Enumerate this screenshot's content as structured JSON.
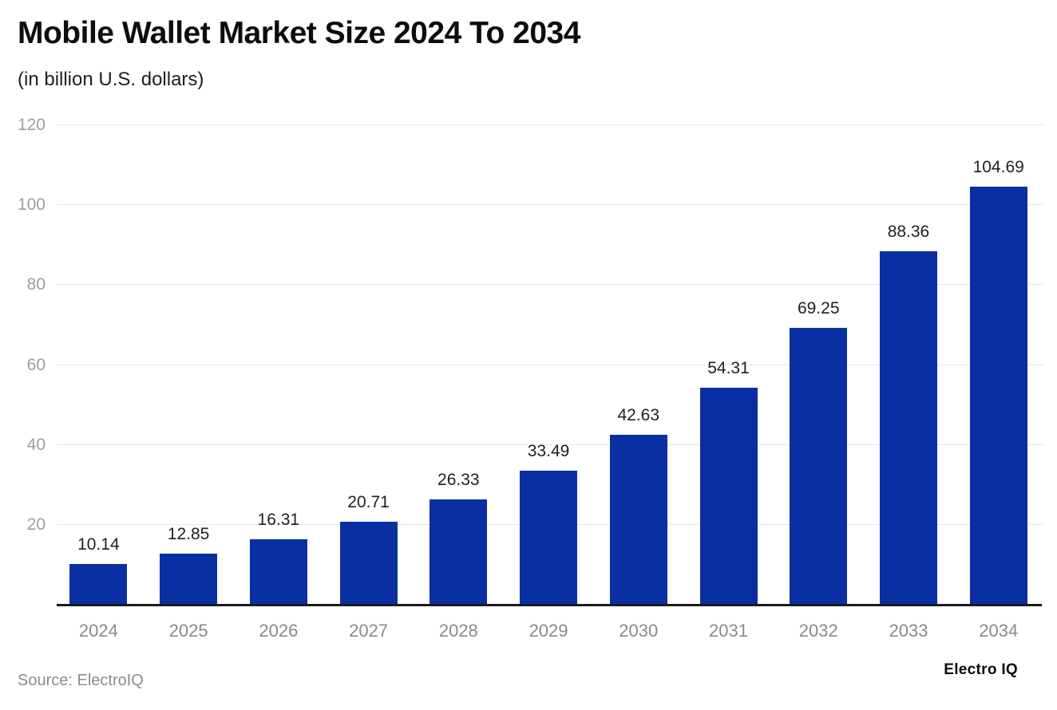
{
  "header": {
    "title": "Mobile Wallet Market Size 2024 To 2034",
    "subtitle": "(in billion U.S. dollars)"
  },
  "chart_data": {
    "type": "bar",
    "title": "Mobile Wallet Market Size 2024 To 2034",
    "subtitle": "(in billion U.S. dollars)",
    "categories": [
      "2024",
      "2025",
      "2026",
      "2027",
      "2028",
      "2029",
      "2030",
      "2031",
      "2032",
      "2033",
      "2034"
    ],
    "values": [
      10.14,
      12.85,
      16.31,
      20.71,
      26.33,
      33.49,
      42.63,
      54.31,
      69.25,
      88.36,
      104.69
    ],
    "value_labels": [
      "10.14",
      "12.85",
      "16.31",
      "20.71",
      "26.33",
      "33.49",
      "42.63",
      "54.31",
      "69.25",
      "88.36",
      "104.69"
    ],
    "xlabel": "",
    "ylabel": "",
    "ylim": [
      0,
      120
    ],
    "yticks": [
      20,
      40,
      60,
      80,
      100,
      120
    ],
    "grid": true,
    "legend": "none",
    "bar_color": "#0a2fa2",
    "gridline_color": "#e7e7e7",
    "axis_line_color": "#1c1c1c"
  },
  "footer": {
    "source": "Source: ElectroIQ",
    "brand": "Electro IQ"
  }
}
